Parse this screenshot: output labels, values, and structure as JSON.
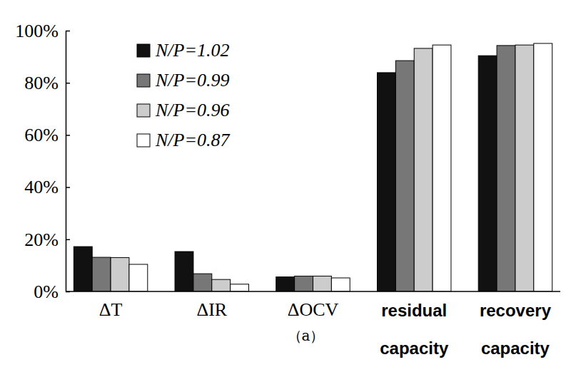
{
  "chart_data": {
    "type": "bar",
    "title": "（a）",
    "categories": [
      "ΔT",
      "ΔIR",
      "ΔOCV",
      "residual capacity",
      "recovery capacity"
    ],
    "series": [
      {
        "name": "N/P=1.02",
        "color": "#111111",
        "values": [
          17.2,
          15.3,
          5.6,
          83.9,
          90.4
        ]
      },
      {
        "name": "N/P=0.99",
        "color": "#777777",
        "values": [
          13.1,
          6.8,
          5.9,
          88.5,
          94.3
        ]
      },
      {
        "name": "N/P=0.96",
        "color": "#cccccc",
        "values": [
          13.0,
          4.6,
          5.9,
          93.2,
          94.5
        ]
      },
      {
        "name": "N/P=0.87",
        "color": "#ffffff",
        "values": [
          10.4,
          2.8,
          5.2,
          94.5,
          95.1
        ]
      }
    ],
    "ylim": [
      0,
      100
    ],
    "yticks": [
      {
        "value": 0,
        "label": "0%"
      },
      {
        "value": 20,
        "label": "20%"
      },
      {
        "value": 40,
        "label": "40%"
      },
      {
        "value": 60,
        "label": "60%"
      },
      {
        "value": 80,
        "label": "80%"
      },
      {
        "value": 100,
        "label": "100%"
      }
    ],
    "legend": "upper-left"
  }
}
